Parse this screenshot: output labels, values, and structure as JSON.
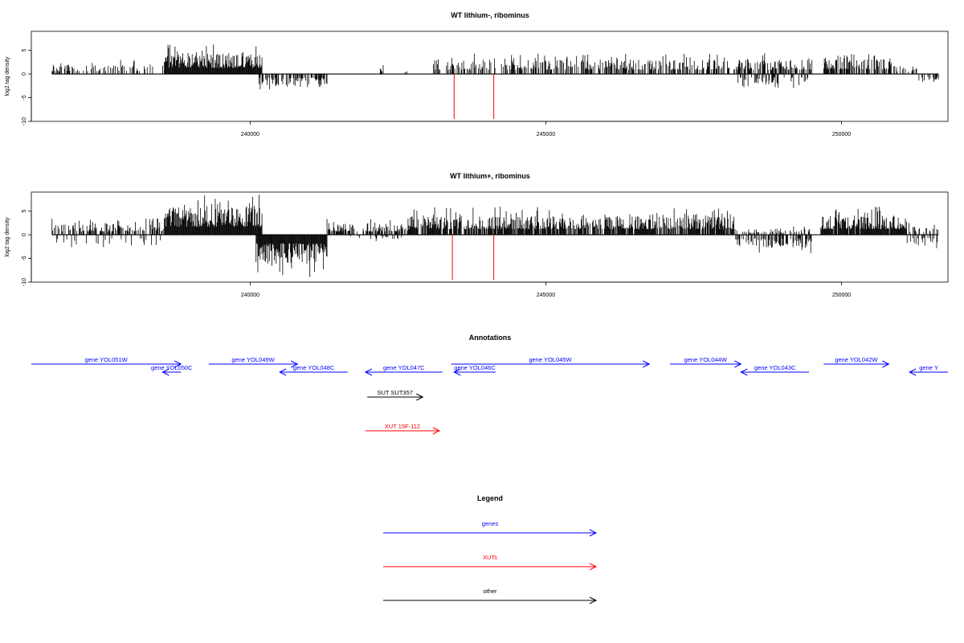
{
  "colors": {
    "gene": "#0000ff",
    "xut": "#ff0000",
    "other": "#000000",
    "signal": "#000000"
  },
  "annotations_title": "Annotations",
  "legend": {
    "title": "Legend",
    "items": [
      {
        "label": "genes",
        "kind": "gene"
      },
      {
        "label": "XUTs",
        "kind": "xut"
      },
      {
        "label": "other",
        "kind": "other"
      }
    ]
  },
  "chart_data": [
    {
      "type": "bar",
      "title": "WT lithium-, ribominus",
      "ylabel": "log2 tag density",
      "xlim": [
        236300,
        251800
      ],
      "ylim": [
        -10,
        9
      ],
      "yticks": [
        -10,
        -5,
        0,
        5
      ],
      "xticks": [
        240000,
        245000,
        250000
      ],
      "data_start": 236650,
      "data_end": 251640,
      "segments": [
        {
          "from": 236650,
          "to": 238550,
          "strand": "+",
          "max": 3,
          "density": 0.35
        },
        {
          "from": 238550,
          "to": 240200,
          "strand": "+",
          "max": 6.5,
          "density": 1.0
        },
        {
          "from": 240150,
          "to": 241300,
          "strand": "-",
          "max": 4,
          "density": 0.6
        },
        {
          "from": 242200,
          "to": 242250,
          "strand": "+",
          "max": 2,
          "density": 0.5
        },
        {
          "from": 242600,
          "to": 242650,
          "strand": "+",
          "max": 1.5,
          "density": 0.5
        },
        {
          "from": 243100,
          "to": 249500,
          "strand": "+",
          "max": 4.5,
          "density": 0.55
        },
        {
          "from": 248250,
          "to": 249450,
          "strand": "-",
          "max": 3.5,
          "density": 0.3
        },
        {
          "from": 249700,
          "to": 250850,
          "strand": "+",
          "max": 5,
          "density": 0.7
        },
        {
          "from": 250850,
          "to": 251300,
          "strand": "+",
          "max": 2.5,
          "density": 0.35
        },
        {
          "from": 251300,
          "to": 251640,
          "strand": "-",
          "max": 3,
          "density": 0.45
        }
      ],
      "red_marks": [
        {
          "x": 243450,
          "y": -9.5
        },
        {
          "x": 244120,
          "y": -9.5
        }
      ]
    },
    {
      "type": "bar",
      "title": "WT lithium+, ribominus",
      "ylabel": "log2 tag density",
      "xlim": [
        236300,
        251800
      ],
      "ylim": [
        -10,
        9
      ],
      "yticks": [
        -10,
        -5,
        0,
        5
      ],
      "xticks": [
        240000,
        245000,
        250000
      ],
      "data_start": 236650,
      "data_end": 251640,
      "segments": [
        {
          "from": 236650,
          "to": 238550,
          "strand": "+",
          "max": 3.5,
          "density": 0.5
        },
        {
          "from": 236650,
          "to": 238550,
          "strand": "-",
          "max": 4,
          "density": 0.12
        },
        {
          "from": 238550,
          "to": 240200,
          "strand": "+",
          "max": 8.5,
          "density": 1.0
        },
        {
          "from": 240100,
          "to": 241300,
          "strand": "-",
          "max": 9,
          "density": 1.0
        },
        {
          "from": 241300,
          "to": 242700,
          "strand": "+",
          "max": 3.5,
          "density": 0.6
        },
        {
          "from": 241700,
          "to": 242600,
          "strand": "-",
          "max": 1.5,
          "density": 0.2
        },
        {
          "from": 242700,
          "to": 248200,
          "strand": "+",
          "max": 6,
          "density": 0.85
        },
        {
          "from": 248200,
          "to": 249500,
          "strand": "-",
          "max": 4,
          "density": 0.6
        },
        {
          "from": 248200,
          "to": 249500,
          "strand": "+",
          "max": 2,
          "density": 0.3
        },
        {
          "from": 249650,
          "to": 251100,
          "strand": "+",
          "max": 6,
          "density": 0.95
        },
        {
          "from": 251100,
          "to": 251640,
          "strand": "-",
          "max": 3,
          "density": 0.4
        },
        {
          "from": 251100,
          "to": 251640,
          "strand": "+",
          "max": 2.5,
          "density": 0.35
        }
      ],
      "red_marks": [
        {
          "x": 243420,
          "y": -9.5
        },
        {
          "x": 244120,
          "y": -9.5
        }
      ]
    }
  ],
  "features": [
    {
      "label": "gene YOL051W",
      "kind": "gene",
      "strand": "+",
      "start": 236300,
      "end": 238830,
      "row": 0
    },
    {
      "label": "gene YOL050C",
      "kind": "gene",
      "strand": "-",
      "start": 238520,
      "end": 238830,
      "row": 1
    },
    {
      "label": "gene YOL049W",
      "kind": "gene",
      "strand": "+",
      "start": 239300,
      "end": 240800,
      "row": 0
    },
    {
      "label": "gene YOL048C",
      "kind": "gene",
      "strand": "-",
      "start": 240500,
      "end": 241650,
      "row": 1
    },
    {
      "label": "gene YOL047C",
      "kind": "gene",
      "strand": "-",
      "start": 241950,
      "end": 243250,
      "row": 1
    },
    {
      "label": "gene YOL046C",
      "kind": "gene",
      "strand": "-",
      "start": 243450,
      "end": 244150,
      "row": 1
    },
    {
      "label": "gene YOL045W",
      "kind": "gene",
      "strand": "+",
      "start": 243400,
      "end": 246750,
      "row": 0
    },
    {
      "label": "gene YOL044W",
      "kind": "gene",
      "strand": "+",
      "start": 247100,
      "end": 248300,
      "row": 0
    },
    {
      "label": "gene YOL043C",
      "kind": "gene",
      "strand": "-",
      "start": 248300,
      "end": 249450,
      "row": 1
    },
    {
      "label": "gene YOL042W",
      "kind": "gene",
      "strand": "+",
      "start": 249700,
      "end": 250800,
      "row": 0
    },
    {
      "label": "gene Y",
      "kind": "gene",
      "strand": "-",
      "start": 251150,
      "end": 251800,
      "row": 1
    },
    {
      "label": "SUT SUT357",
      "kind": "other",
      "strand": "+",
      "start": 241980,
      "end": 242920,
      "row": 2
    },
    {
      "label": "XUT 15F-112",
      "kind": "xut",
      "strand": "+",
      "start": 241950,
      "end": 243200,
      "row": 3
    }
  ]
}
